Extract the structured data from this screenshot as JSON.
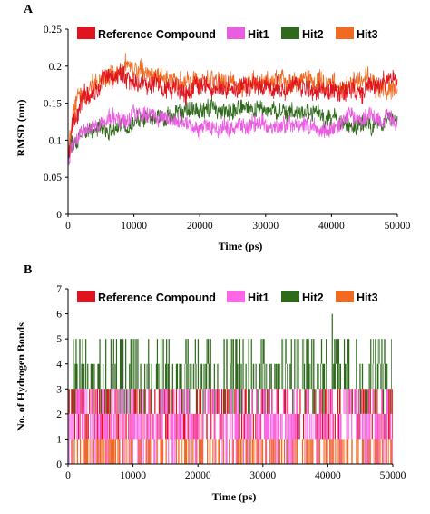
{
  "chart_data": [
    {
      "panel_label": "A",
      "type": "line",
      "xlabel": "Time (ps)",
      "ylabel": "RMSD (nm)",
      "xlim": [
        0,
        50000
      ],
      "ylim": [
        0,
        0.25
      ],
      "x_ticks": [
        0,
        10000,
        20000,
        30000,
        40000,
        50000
      ],
      "y_ticks": [
        0,
        0.05,
        0.1,
        0.15,
        0.2,
        0.25
      ],
      "legend_position": "top",
      "grid": false,
      "series": [
        {
          "name": "Reference Compound",
          "color": "#e0141e",
          "x": [
            0,
            500,
            1000,
            2000,
            3000,
            4000,
            5000,
            6000,
            7000,
            8000,
            9000,
            10000,
            12000,
            14000,
            16000,
            18000,
            20000,
            22000,
            24000,
            26000,
            28000,
            30000,
            32000,
            34000,
            36000,
            38000,
            40000,
            42000,
            44000,
            46000,
            48000,
            50000
          ],
          "values": [
            0.07,
            0.11,
            0.13,
            0.15,
            0.165,
            0.17,
            0.175,
            0.18,
            0.185,
            0.19,
            0.185,
            0.18,
            0.175,
            0.172,
            0.17,
            0.17,
            0.168,
            0.17,
            0.168,
            0.17,
            0.172,
            0.17,
            0.168,
            0.17,
            0.168,
            0.17,
            0.165,
            0.168,
            0.17,
            0.172,
            0.175,
            0.18
          ]
        },
        {
          "name": "Hit1",
          "color": "#ea5ce0",
          "x": [
            0,
            500,
            1000,
            2000,
            3000,
            4000,
            5000,
            6000,
            7000,
            8000,
            9000,
            10000,
            12000,
            14000,
            16000,
            18000,
            20000,
            22000,
            24000,
            26000,
            28000,
            30000,
            32000,
            34000,
            36000,
            38000,
            40000,
            42000,
            44000,
            46000,
            48000,
            50000
          ],
          "values": [
            0.065,
            0.085,
            0.1,
            0.11,
            0.115,
            0.12,
            0.125,
            0.128,
            0.13,
            0.13,
            0.132,
            0.135,
            0.133,
            0.13,
            0.128,
            0.125,
            0.12,
            0.118,
            0.117,
            0.12,
            0.12,
            0.118,
            0.118,
            0.12,
            0.12,
            0.115,
            0.115,
            0.125,
            0.13,
            0.13,
            0.128,
            0.125
          ]
        },
        {
          "name": "Hit2",
          "color": "#2f6a1c",
          "x": [
            0,
            500,
            1000,
            2000,
            3000,
            4000,
            5000,
            6000,
            7000,
            8000,
            9000,
            10000,
            12000,
            14000,
            16000,
            18000,
            20000,
            22000,
            24000,
            26000,
            28000,
            30000,
            32000,
            34000,
            36000,
            38000,
            40000,
            42000,
            44000,
            46000,
            48000,
            50000
          ],
          "values": [
            0.07,
            0.09,
            0.1,
            0.11,
            0.115,
            0.12,
            0.118,
            0.115,
            0.12,
            0.122,
            0.12,
            0.125,
            0.128,
            0.13,
            0.135,
            0.138,
            0.14,
            0.14,
            0.142,
            0.14,
            0.138,
            0.14,
            0.14,
            0.14,
            0.14,
            0.135,
            0.125,
            0.122,
            0.12,
            0.12,
            0.125,
            0.13
          ]
        },
        {
          "name": "Hit3",
          "color": "#f06a22",
          "x": [
            0,
            500,
            1000,
            2000,
            3000,
            4000,
            5000,
            6000,
            7000,
            8000,
            9000,
            10000,
            12000,
            14000,
            16000,
            18000,
            20000,
            22000,
            24000,
            26000,
            28000,
            30000,
            32000,
            34000,
            36000,
            38000,
            40000,
            42000,
            44000,
            46000,
            48000,
            50000
          ],
          "values": [
            0.08,
            0.12,
            0.145,
            0.16,
            0.17,
            0.175,
            0.18,
            0.185,
            0.19,
            0.195,
            0.2,
            0.195,
            0.19,
            0.185,
            0.18,
            0.178,
            0.18,
            0.182,
            0.18,
            0.178,
            0.178,
            0.18,
            0.18,
            0.178,
            0.18,
            0.178,
            0.175,
            0.175,
            0.178,
            0.175,
            0.172,
            0.17
          ]
        }
      ]
    },
    {
      "panel_label": "B",
      "type": "line",
      "xlabel": "Time (ps)",
      "ylabel": "No. of Hydrogen Bonds",
      "xlim": [
        0,
        50000
      ],
      "ylim": [
        0,
        7
      ],
      "x_ticks": [
        0,
        10000,
        20000,
        30000,
        40000,
        50000
      ],
      "y_ticks": [
        0,
        1,
        2,
        3,
        4,
        5,
        6,
        7
      ],
      "legend_position": "top",
      "grid": false,
      "series": [
        {
          "name": "Reference Compound",
          "color": "#e0141e",
          "typical_range": [
            1,
            3
          ],
          "typical_value": 2
        },
        {
          "name": "Hit1",
          "color": "#ff66e8",
          "typical_range": [
            0,
            3
          ],
          "typical_value": 2
        },
        {
          "name": "Hit2",
          "color": "#2f6a1c",
          "typical_range": [
            2,
            5
          ],
          "typical_value": 3,
          "max": 6
        },
        {
          "name": "Hit3",
          "color": "#f06a22",
          "typical_range": [
            0,
            1
          ],
          "typical_value": 0
        }
      ]
    }
  ]
}
